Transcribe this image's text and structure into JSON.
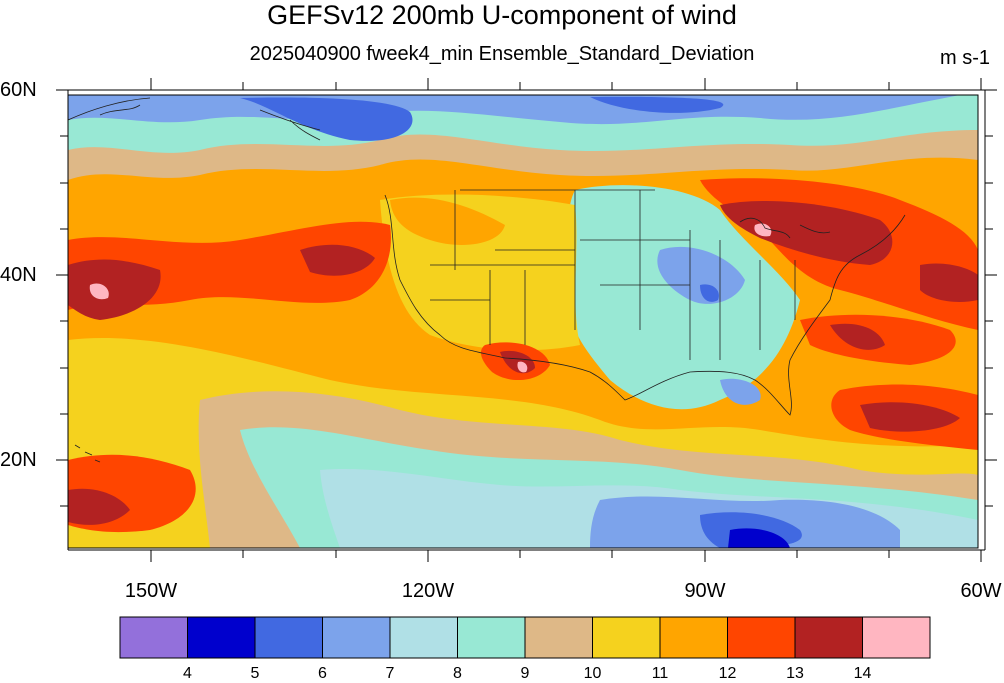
{
  "title": "GEFSv12 200mb U-component of wind",
  "subtitle": "2025040900 fweek4_min Ensemble_Standard_Deviation",
  "units": "m s-1",
  "lat_labels": [
    "60N",
    "40N",
    "20N"
  ],
  "lon_labels": [
    "150W",
    "120W",
    "90W",
    "60W"
  ],
  "colorbar": {
    "labels": [
      "4",
      "5",
      "6",
      "7",
      "8",
      "9",
      "10",
      "11",
      "12",
      "13",
      "14"
    ],
    "colors": [
      "#9370db",
      "#0000cd",
      "#4169e1",
      "#7ca3eb",
      "#b0e0e6",
      "#98e8d4",
      "#deb887",
      "#f5d21e",
      "#ffa500",
      "#ff4500",
      "#b22222",
      "#ffb6c1"
    ]
  },
  "palette": {
    "c6": "#4169e1",
    "c7": "#7ca3eb",
    "c8": "#b0e0e6",
    "c9": "#98e8d4",
    "c10": "#deb887",
    "c11": "#f5d21e",
    "c12": "#ffa500",
    "c13": "#ff4500",
    "c14": "#b22222",
    "c15": "#ffb6c1",
    "c5": "#0000cd"
  }
}
